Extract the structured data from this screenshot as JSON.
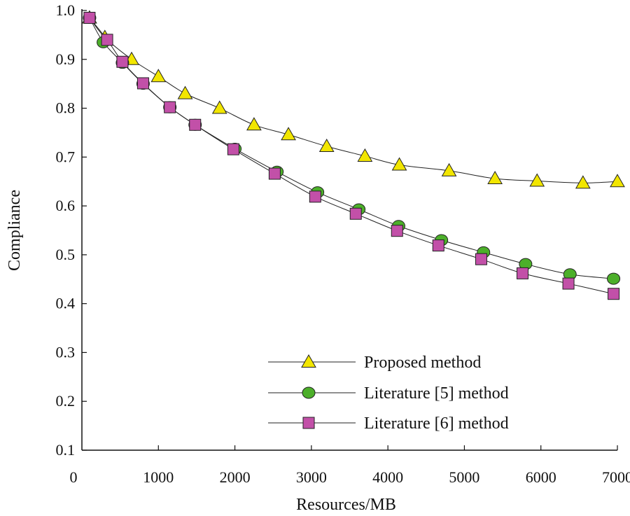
{
  "chart_data": {
    "type": "line",
    "title": "",
    "xlabel": "Resources/MB",
    "ylabel": "Compliance",
    "xlim": [
      0,
      7000
    ],
    "ylim": [
      0.1,
      1.0
    ],
    "xticks": [
      0,
      1000,
      2000,
      3000,
      4000,
      5000,
      6000,
      7000
    ],
    "yticks": [
      0.1,
      0.2,
      0.3,
      0.4,
      0.5,
      0.6,
      0.7,
      0.8,
      0.9,
      1.0
    ],
    "xtick_labels": [
      "0",
      "1000",
      "2000",
      "3000",
      "4000",
      "5000",
      "6000",
      "7000"
    ],
    "ytick_labels": [
      "0.1",
      "0.2",
      "0.3",
      "0.4",
      "0.5",
      "0.6",
      "0.7",
      "0.8",
      "0.9",
      "1.0"
    ],
    "grid": false,
    "legend_position": "bottom-right",
    "series": [
      {
        "name": "Proposed method",
        "marker": "triangle",
        "color": "#f2e600",
        "x": [
          100,
          300,
          650,
          1000,
          1350,
          1800,
          2250,
          2700,
          3200,
          3700,
          4150,
          4800,
          5400,
          5950,
          6550,
          7000
        ],
        "y": [
          0.985,
          0.945,
          0.9,
          0.865,
          0.83,
          0.8,
          0.766,
          0.746,
          0.722,
          0.702,
          0.684,
          0.672,
          0.656,
          0.651,
          0.647,
          0.65
        ]
      },
      {
        "name": "Literature [5] method",
        "marker": "circle",
        "color": "#4caf2a",
        "x": [
          100,
          280,
          530,
          800,
          1150,
          1480,
          2000,
          2550,
          3080,
          3620,
          4140,
          4700,
          5250,
          5800,
          6380,
          6950
        ],
        "y": [
          0.985,
          0.935,
          0.893,
          0.85,
          0.802,
          0.766,
          0.717,
          0.67,
          0.628,
          0.593,
          0.559,
          0.53,
          0.505,
          0.481,
          0.46,
          0.451
        ]
      },
      {
        "name": "Literature [6] method",
        "marker": "square",
        "color": "#c250a8",
        "x": [
          100,
          330,
          530,
          800,
          1150,
          1480,
          1980,
          2520,
          3050,
          3580,
          4120,
          4660,
          5220,
          5760,
          6360,
          6950
        ],
        "y": [
          0.985,
          0.94,
          0.895,
          0.851,
          0.802,
          0.766,
          0.716,
          0.666,
          0.619,
          0.584,
          0.549,
          0.519,
          0.491,
          0.462,
          0.441,
          0.42
        ]
      }
    ]
  }
}
